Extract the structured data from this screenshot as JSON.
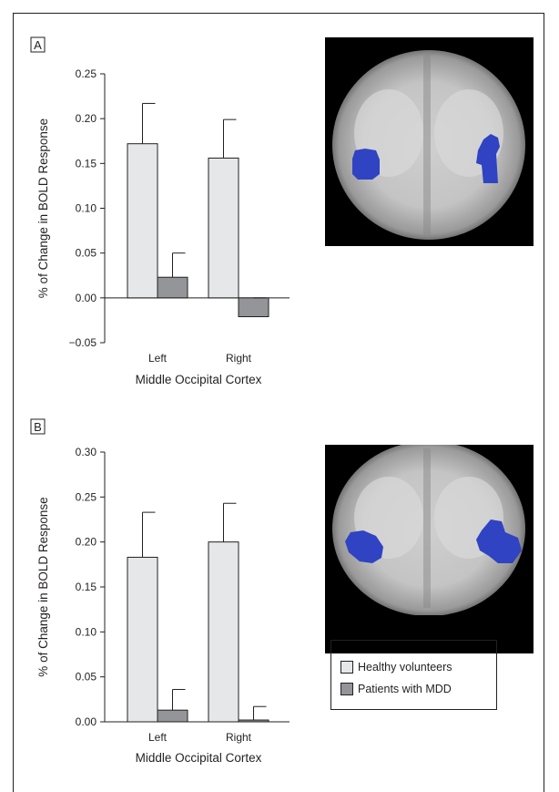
{
  "colors": {
    "healthy": "#e6e7e8",
    "patients": "#939598",
    "activation": "#2f43c3",
    "brain_bg": "#000000"
  },
  "legend": {
    "items": [
      {
        "label": "Healthy volunteers",
        "color": "#e6e7e8"
      },
      {
        "label": "Patients with MDD",
        "color": "#939598"
      }
    ]
  },
  "chart_data": [
    {
      "type": "bar",
      "panel": "A",
      "xlabel": "Middle Occipital Cortex",
      "ylabel": "% of Change in BOLD Response",
      "categories": [
        "Left",
        "Right"
      ],
      "ylim": [
        -0.05,
        0.25
      ],
      "yticks": [
        "0.25",
        "0.20",
        "0.15",
        "0.10",
        "0.05",
        "0.00",
        "−0.05"
      ],
      "ytick_values": [
        0.25,
        0.2,
        0.15,
        0.1,
        0.05,
        0.0,
        -0.05
      ],
      "series": [
        {
          "name": "Healthy volunteers",
          "values": [
            0.172,
            0.156
          ],
          "errors": [
            0.045,
            0.043
          ]
        },
        {
          "name": "Patients with MDD",
          "values": [
            0.023,
            -0.021
          ],
          "errors": [
            0.027,
            0.021
          ]
        }
      ]
    },
    {
      "type": "bar",
      "panel": "B",
      "xlabel": "Middle Occipital Cortex",
      "ylabel": "% of Change in BOLD Response",
      "categories": [
        "Left",
        "Right"
      ],
      "ylim": [
        0.0,
        0.3
      ],
      "yticks": [
        "0.30",
        "0.25",
        "0.20",
        "0.15",
        "0.10",
        "0.05",
        "0.00"
      ],
      "ytick_values": [
        0.3,
        0.25,
        0.2,
        0.15,
        0.1,
        0.05,
        0.0
      ],
      "series": [
        {
          "name": "Healthy volunteers",
          "values": [
            0.183,
            0.2
          ],
          "errors": [
            0.05,
            0.043
          ]
        },
        {
          "name": "Patients with MDD",
          "values": [
            0.013,
            0.002
          ],
          "errors": [
            0.023,
            0.015
          ]
        }
      ]
    }
  ]
}
